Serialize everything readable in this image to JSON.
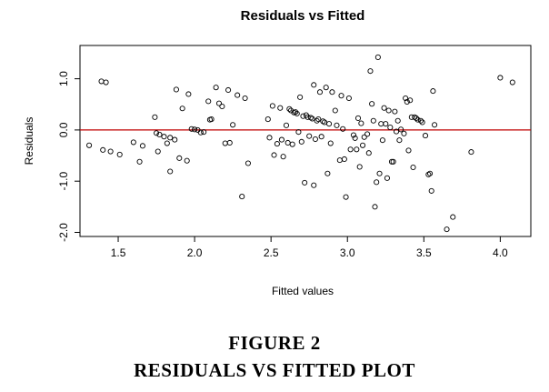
{
  "chart_data": {
    "type": "scatter",
    "title": "Residuals vs Fitted",
    "xlabel": "Fitted values",
    "ylabel": "Residuals",
    "xlim": [
      1.25,
      4.2
    ],
    "ylim": [
      -2.08,
      1.65
    ],
    "x_ticks": [
      1.5,
      2.0,
      2.5,
      3.0,
      3.5,
      4.0
    ],
    "x_tick_labels": [
      "1.5",
      "2.0",
      "2.5",
      "3.0",
      "3.5",
      "4.0"
    ],
    "y_ticks": [
      -2.0,
      -1.0,
      0.0,
      1.0
    ],
    "y_tick_labels": [
      "-2.0",
      "-1.0",
      "0.0",
      "1.0"
    ],
    "reference_line": {
      "y": 0,
      "color": "#c00000"
    },
    "marker": "open-circle",
    "grid": false,
    "points": [
      [
        1.31,
        -0.3
      ],
      [
        1.39,
        0.95
      ],
      [
        1.42,
        0.93
      ],
      [
        1.4,
        -0.39
      ],
      [
        1.45,
        -0.42
      ],
      [
        1.51,
        -0.48
      ],
      [
        1.6,
        -0.24
      ],
      [
        1.64,
        -0.62
      ],
      [
        1.66,
        -0.31
      ],
      [
        1.74,
        0.25
      ],
      [
        1.75,
        -0.06
      ],
      [
        1.77,
        -0.09
      ],
      [
        1.76,
        -0.42
      ],
      [
        1.8,
        -0.13
      ],
      [
        1.82,
        -0.26
      ],
      [
        1.84,
        -0.15
      ],
      [
        1.84,
        -0.81
      ],
      [
        1.87,
        -0.19
      ],
      [
        1.88,
        0.79
      ],
      [
        1.9,
        -0.55
      ],
      [
        1.92,
        0.42
      ],
      [
        1.95,
        -0.6
      ],
      [
        1.96,
        0.7
      ],
      [
        1.98,
        0.02
      ],
      [
        2.0,
        0.01
      ],
      [
        2.02,
        0.0
      ],
      [
        2.04,
        -0.05
      ],
      [
        2.06,
        -0.04
      ],
      [
        2.09,
        0.56
      ],
      [
        2.1,
        0.2
      ],
      [
        2.11,
        0.21
      ],
      [
        2.14,
        0.83
      ],
      [
        2.16,
        0.52
      ],
      [
        2.18,
        0.46
      ],
      [
        2.2,
        -0.26
      ],
      [
        2.22,
        0.78
      ],
      [
        2.23,
        -0.25
      ],
      [
        2.25,
        0.1
      ],
      [
        2.28,
        0.68
      ],
      [
        2.31,
        -1.3
      ],
      [
        2.33,
        0.62
      ],
      [
        2.35,
        -0.65
      ],
      [
        2.48,
        0.21
      ],
      [
        2.49,
        -0.15
      ],
      [
        2.51,
        0.47
      ],
      [
        2.52,
        -0.49
      ],
      [
        2.54,
        -0.27
      ],
      [
        2.56,
        0.43
      ],
      [
        2.57,
        -0.19
      ],
      [
        2.58,
        -0.52
      ],
      [
        2.6,
        0.09
      ],
      [
        2.61,
        -0.25
      ],
      [
        2.62,
        0.41
      ],
      [
        2.63,
        0.38
      ],
      [
        2.64,
        -0.28
      ],
      [
        2.65,
        0.34
      ],
      [
        2.66,
        0.35
      ],
      [
        2.67,
        0.32
      ],
      [
        2.68,
        -0.04
      ],
      [
        2.69,
        0.64
      ],
      [
        2.7,
        -0.23
      ],
      [
        2.71,
        0.27
      ],
      [
        2.72,
        -1.03
      ],
      [
        2.73,
        0.29
      ],
      [
        2.74,
        0.25
      ],
      [
        2.75,
        -0.12
      ],
      [
        2.76,
        0.24
      ],
      [
        2.77,
        0.22
      ],
      [
        2.78,
        0.88
      ],
      [
        2.78,
        -1.08
      ],
      [
        2.79,
        -0.18
      ],
      [
        2.8,
        0.18
      ],
      [
        2.81,
        0.21
      ],
      [
        2.82,
        0.74
      ],
      [
        2.83,
        -0.13
      ],
      [
        2.84,
        0.17
      ],
      [
        2.85,
        0.15
      ],
      [
        2.86,
        0.83
      ],
      [
        2.87,
        -0.85
      ],
      [
        2.88,
        0.12
      ],
      [
        2.89,
        -0.26
      ],
      [
        2.9,
        0.74
      ],
      [
        2.92,
        0.38
      ],
      [
        2.93,
        0.09
      ],
      [
        2.95,
        -0.59
      ],
      [
        2.96,
        0.67
      ],
      [
        2.97,
        0.02
      ],
      [
        2.98,
        -0.57
      ],
      [
        2.99,
        -1.31
      ],
      [
        3.01,
        0.62
      ],
      [
        3.02,
        -0.38
      ],
      [
        3.04,
        -0.1
      ],
      [
        3.05,
        -0.16
      ],
      [
        3.06,
        -0.38
      ],
      [
        3.07,
        0.23
      ],
      [
        3.08,
        -0.72
      ],
      [
        3.09,
        0.13
      ],
      [
        3.1,
        -0.3
      ],
      [
        3.11,
        -0.14
      ],
      [
        3.13,
        -0.08
      ],
      [
        3.14,
        -0.45
      ],
      [
        3.15,
        1.15
      ],
      [
        3.16,
        0.51
      ],
      [
        3.17,
        0.18
      ],
      [
        3.18,
        -1.5
      ],
      [
        3.19,
        -1.02
      ],
      [
        3.2,
        1.42
      ],
      [
        3.21,
        -0.85
      ],
      [
        3.22,
        0.12
      ],
      [
        3.23,
        -0.2
      ],
      [
        3.24,
        0.43
      ],
      [
        3.25,
        0.12
      ],
      [
        3.26,
        -0.94
      ],
      [
        3.27,
        0.38
      ],
      [
        3.28,
        0.05
      ],
      [
        3.29,
        -0.62
      ],
      [
        3.3,
        -0.62
      ],
      [
        3.31,
        0.36
      ],
      [
        3.32,
        -0.03
      ],
      [
        3.33,
        0.18
      ],
      [
        3.34,
        -0.2
      ],
      [
        3.35,
        0.01
      ],
      [
        3.37,
        -0.07
      ],
      [
        3.38,
        0.62
      ],
      [
        3.39,
        0.55
      ],
      [
        3.4,
        -0.4
      ],
      [
        3.41,
        0.58
      ],
      [
        3.42,
        0.25
      ],
      [
        3.43,
        -0.73
      ],
      [
        3.44,
        0.25
      ],
      [
        3.45,
        0.23
      ],
      [
        3.46,
        0.2
      ],
      [
        3.48,
        0.18
      ],
      [
        3.49,
        0.15
      ],
      [
        3.51,
        -0.11
      ],
      [
        3.53,
        -0.87
      ],
      [
        3.54,
        -0.85
      ],
      [
        3.55,
        -1.19
      ],
      [
        3.56,
        0.76
      ],
      [
        3.57,
        0.1
      ],
      [
        3.65,
        -1.94
      ],
      [
        3.69,
        -1.7
      ],
      [
        3.81,
        -0.43
      ],
      [
        4.0,
        1.02
      ],
      [
        4.08,
        0.93
      ]
    ]
  },
  "caption": {
    "figure_number": "FIGURE 2",
    "figure_title": "RESIDUALS VS FITTED PLOT"
  }
}
